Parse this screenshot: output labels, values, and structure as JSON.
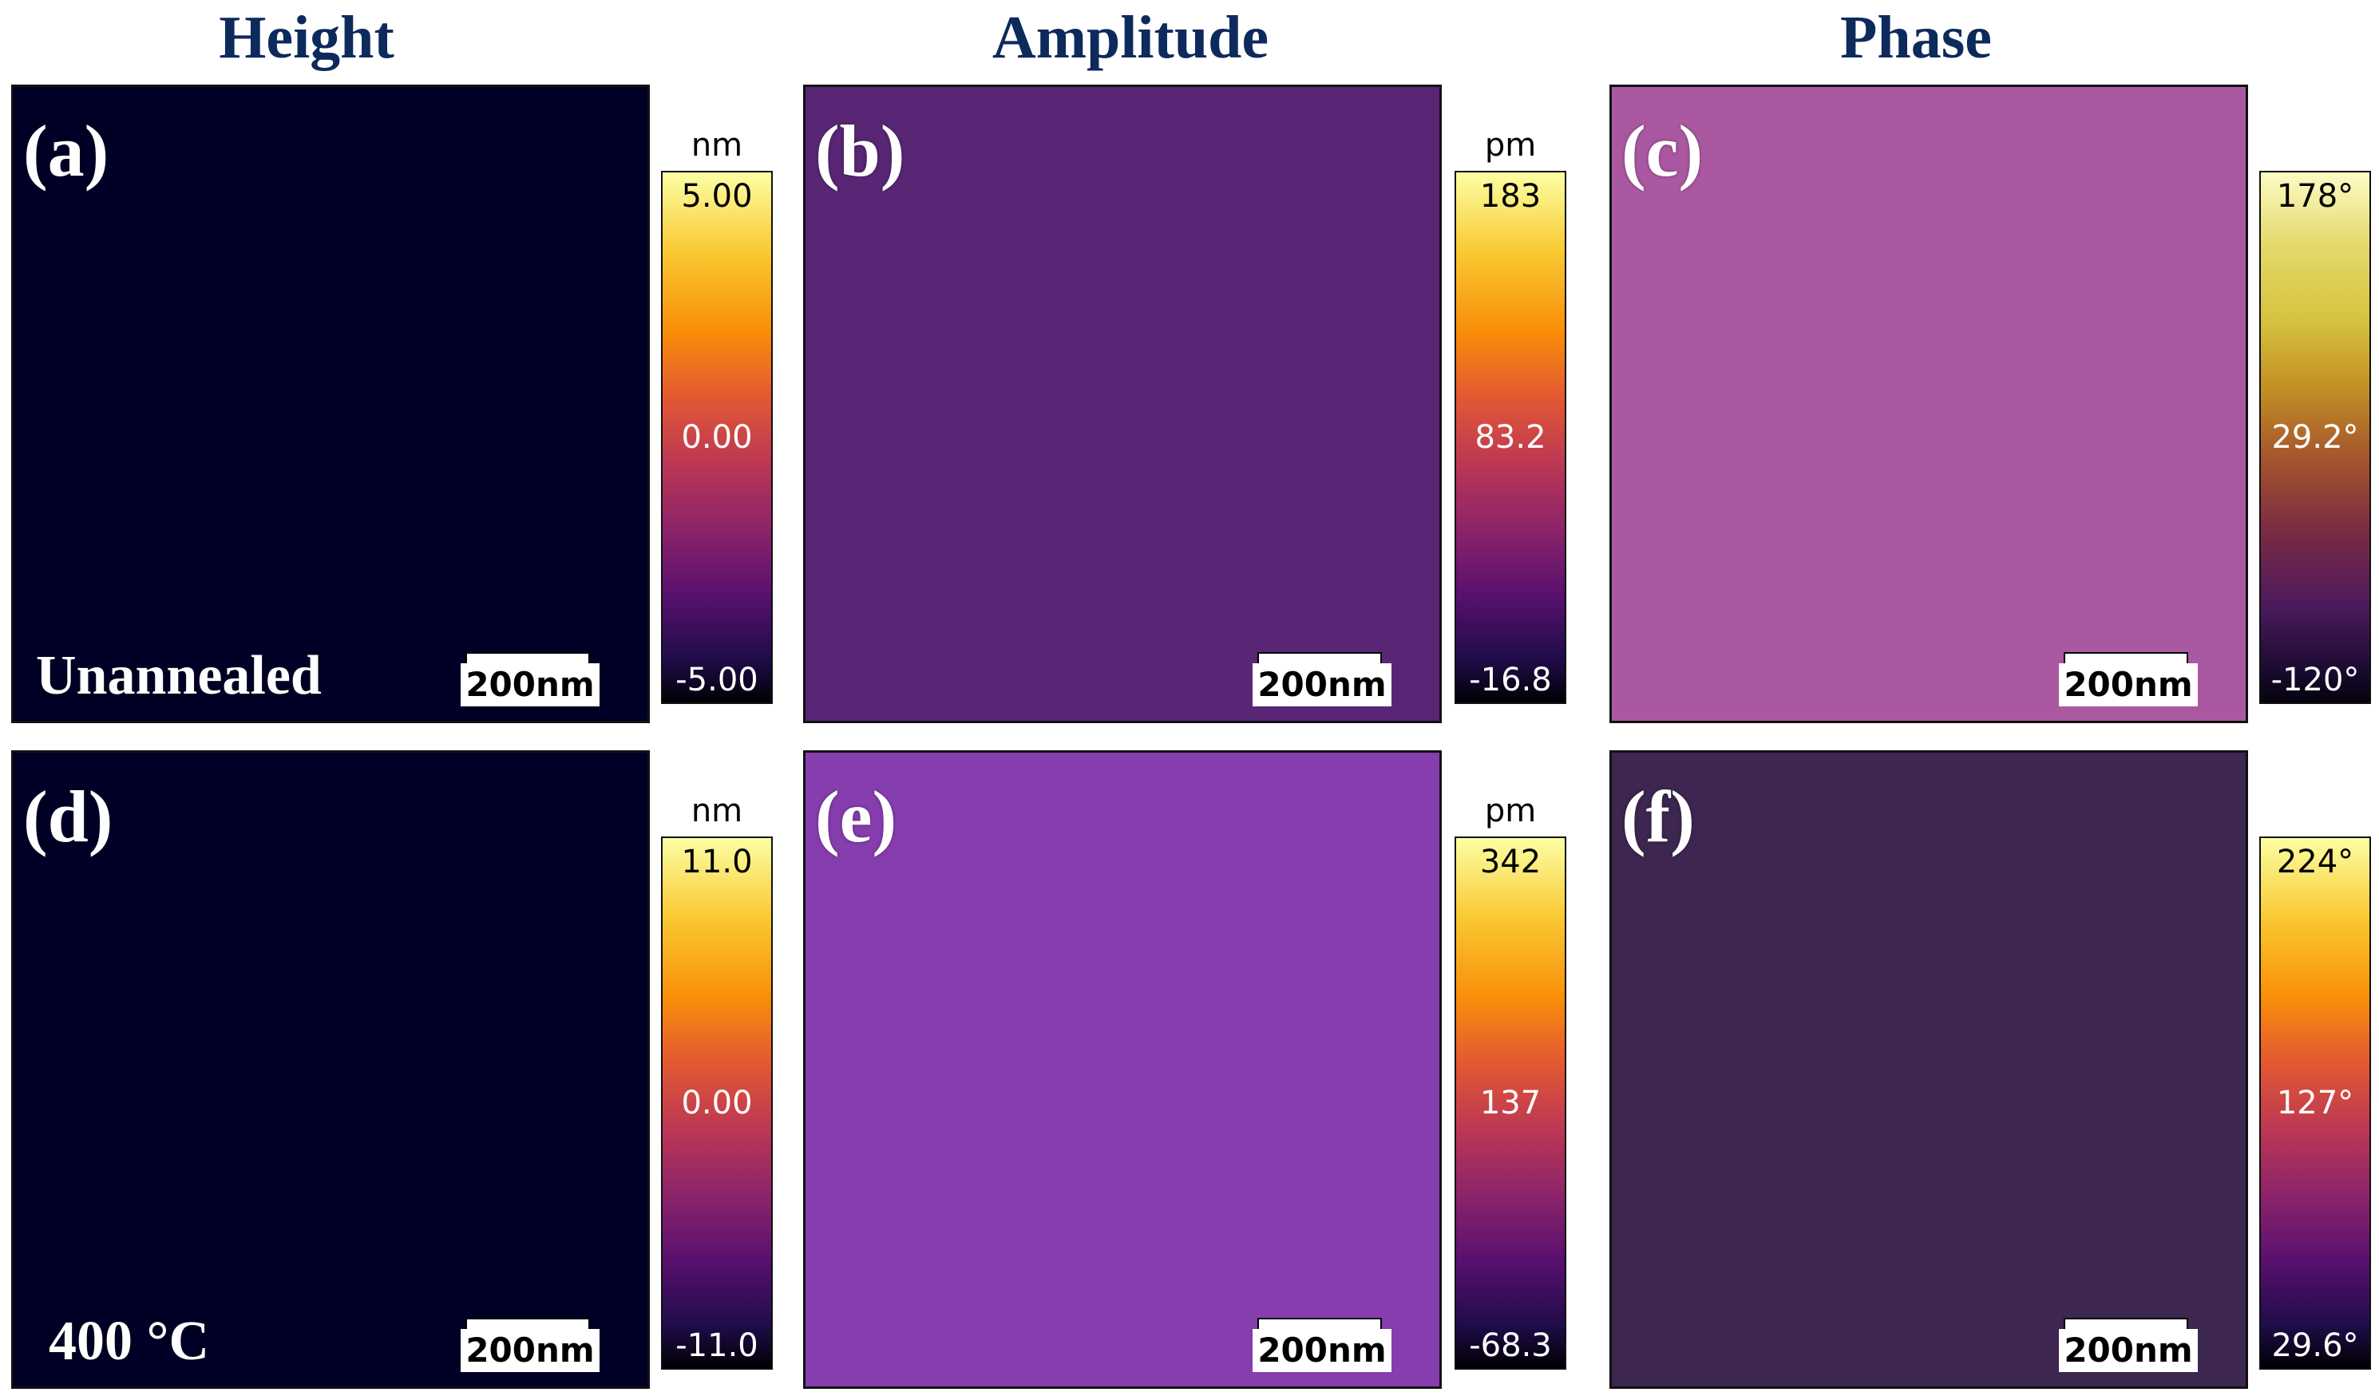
{
  "columns": [
    "Height",
    "Amplitude",
    "Phase"
  ],
  "panels": [
    {
      "label": "(a)",
      "condition": "Unannealed",
      "scale_bar": "200nm"
    },
    {
      "label": "(b)",
      "condition": "",
      "scale_bar": "200nm"
    },
    {
      "label": "(c)",
      "condition": "",
      "scale_bar": "200nm"
    },
    {
      "label": "(d)",
      "condition": "400 °C",
      "scale_bar": "200nm"
    },
    {
      "label": "(e)",
      "condition": "",
      "scale_bar": "200nm"
    },
    {
      "label": "(f)",
      "condition": "",
      "scale_bar": "200nm"
    }
  ],
  "colorbars": [
    {
      "unit": "nm",
      "max": "5.00",
      "mid": "0.00",
      "min": "-5.00",
      "colormap": "inferno"
    },
    {
      "unit": "pm",
      "max": "183",
      "mid": "83.2",
      "min": "-16.8",
      "colormap": "inferno"
    },
    {
      "unit": "",
      "max": "178°",
      "mid": "29.2°",
      "min": "-120°",
      "colormap": "phase"
    },
    {
      "unit": "nm",
      "max": "11.0",
      "mid": "0.00",
      "min": "-11.0",
      "colormap": "inferno"
    },
    {
      "unit": "pm",
      "max": "342",
      "mid": "137",
      "min": "-68.3",
      "colormap": "inferno"
    },
    {
      "unit": "",
      "max": "224°",
      "mid": "127°",
      "min": "29.6°",
      "colormap": "inferno"
    }
  ]
}
